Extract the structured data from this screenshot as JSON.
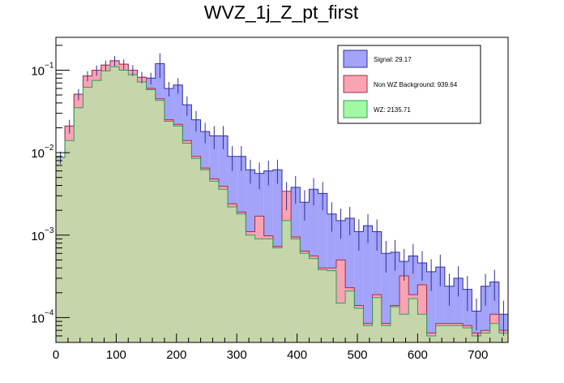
{
  "chart_data": {
    "type": "histogram",
    "title": "WVZ_1j_Z_pt_first",
    "xlabel": "",
    "ylabel": "",
    "xlim": [
      0,
      750
    ],
    "ylim": [
      5e-05,
      0.25
    ],
    "yscale": "log",
    "bin_width": 15,
    "x_ticks": [
      0,
      100,
      200,
      300,
      400,
      500,
      600,
      700
    ],
    "x_tick_labels": [
      "0",
      "100",
      "200",
      "300",
      "400",
      "500",
      "600",
      "700"
    ],
    "y_ticks": [
      {
        "value": 0.1,
        "base": "10",
        "exp": "−1"
      },
      {
        "value": 0.01,
        "base": "10",
        "exp": "−2"
      },
      {
        "value": 0.001,
        "base": "10",
        "exp": "−3"
      },
      {
        "value": 0.0001,
        "base": "10",
        "exp": "−4"
      }
    ],
    "legend_position": "top-right",
    "series": [
      {
        "name": "Signal: 29.17",
        "key": "signal",
        "color": "#a3a3f9",
        "line": "#2f2f9e",
        "values": [
          0.0088,
          0.021,
          0.051,
          0.085,
          0.1,
          0.115,
          0.13,
          0.118,
          0.1,
          0.082,
          0.08,
          0.12,
          0.06,
          0.066,
          0.038,
          0.025,
          0.018,
          0.016,
          0.016,
          0.009,
          0.009,
          0.0062,
          0.0056,
          0.006,
          0.0062,
          0.0032,
          0.0038,
          0.0025,
          0.0036,
          0.0032,
          0.0018,
          0.0015,
          0.0016,
          0.0011,
          0.0013,
          0.0011,
          0.0006,
          0.00062,
          0.00048,
          0.00056,
          0.00046,
          0.00036,
          0.00041,
          0.00024,
          0.0003,
          0.00022,
          0.00012,
          0.00024,
          0.00027,
          0.00011
        ],
        "errors": [
          0.0015,
          0.004,
          0.008,
          0.012,
          0.014,
          0.016,
          0.018,
          0.017,
          0.015,
          0.013,
          0.013,
          0.04,
          0.012,
          0.014,
          0.01,
          0.007,
          0.005,
          0.005,
          0.005,
          0.003,
          0.003,
          0.002,
          0.002,
          0.002,
          0.002,
          0.0012,
          0.0014,
          0.001,
          0.0013,
          0.0012,
          0.0007,
          0.0006,
          0.0006,
          0.00045,
          0.0005,
          0.00045,
          0.00025,
          0.00025,
          0.0002,
          0.00022,
          0.00018,
          0.00015,
          0.00017,
          0.0001,
          0.00012,
          0.0001,
          5e-05,
          0.0001,
          0.00011,
          5e-05
        ]
      },
      {
        "name": "Non WZ Background: 939.64",
        "key": "background",
        "color": "#f9a3b3",
        "line": "#9e2f4a",
        "values": [
          0.0088,
          0.021,
          0.051,
          0.085,
          0.1,
          0.115,
          0.13,
          0.118,
          0.1,
          0.082,
          0.06,
          0.045,
          0.025,
          0.022,
          0.014,
          0.009,
          0.0065,
          0.0048,
          0.0039,
          0.0024,
          0.0019,
          0.0011,
          0.0017,
          0.00098,
          0.00073,
          0.0034,
          0.00095,
          0.00064,
          0.00056,
          0.0004,
          0.0004,
          0.0005,
          0.00023,
          0.00014,
          8.5e-05,
          0.00019,
          8.5e-05,
          0.00014,
          0.00032,
          0.00019,
          0.00025,
          6.5e-05,
          8.5e-05,
          8.5e-05,
          8.5e-05,
          8e-05,
          6.5e-05,
          7e-05,
          0.00011,
          7e-05
        ],
        "errors": []
      },
      {
        "name": "WZ: 2135.71",
        "key": "wz",
        "color": "#a3f9a3",
        "line": "#2f9e5a",
        "values": [
          0.0088,
          0.014,
          0.035,
          0.062,
          0.075,
          0.098,
          0.11,
          0.1,
          0.088,
          0.072,
          0.058,
          0.043,
          0.024,
          0.021,
          0.013,
          0.0085,
          0.0062,
          0.0045,
          0.0036,
          0.0022,
          0.0018,
          0.001,
          0.0009,
          0.0009,
          0.0007,
          0.0015,
          0.0009,
          0.0006,
          0.00052,
          0.00038,
          0.00037,
          0.00015,
          0.00021,
          0.00013,
          8e-05,
          0.000175,
          8e-05,
          0.000135,
          0.00011,
          0.00017,
          0.00011,
          6e-05,
          8e-05,
          8e-05,
          8e-05,
          7.5e-05,
          6e-05,
          6.5e-05,
          8.5e-05,
          6.5e-05
        ],
        "errors": []
      }
    ]
  }
}
